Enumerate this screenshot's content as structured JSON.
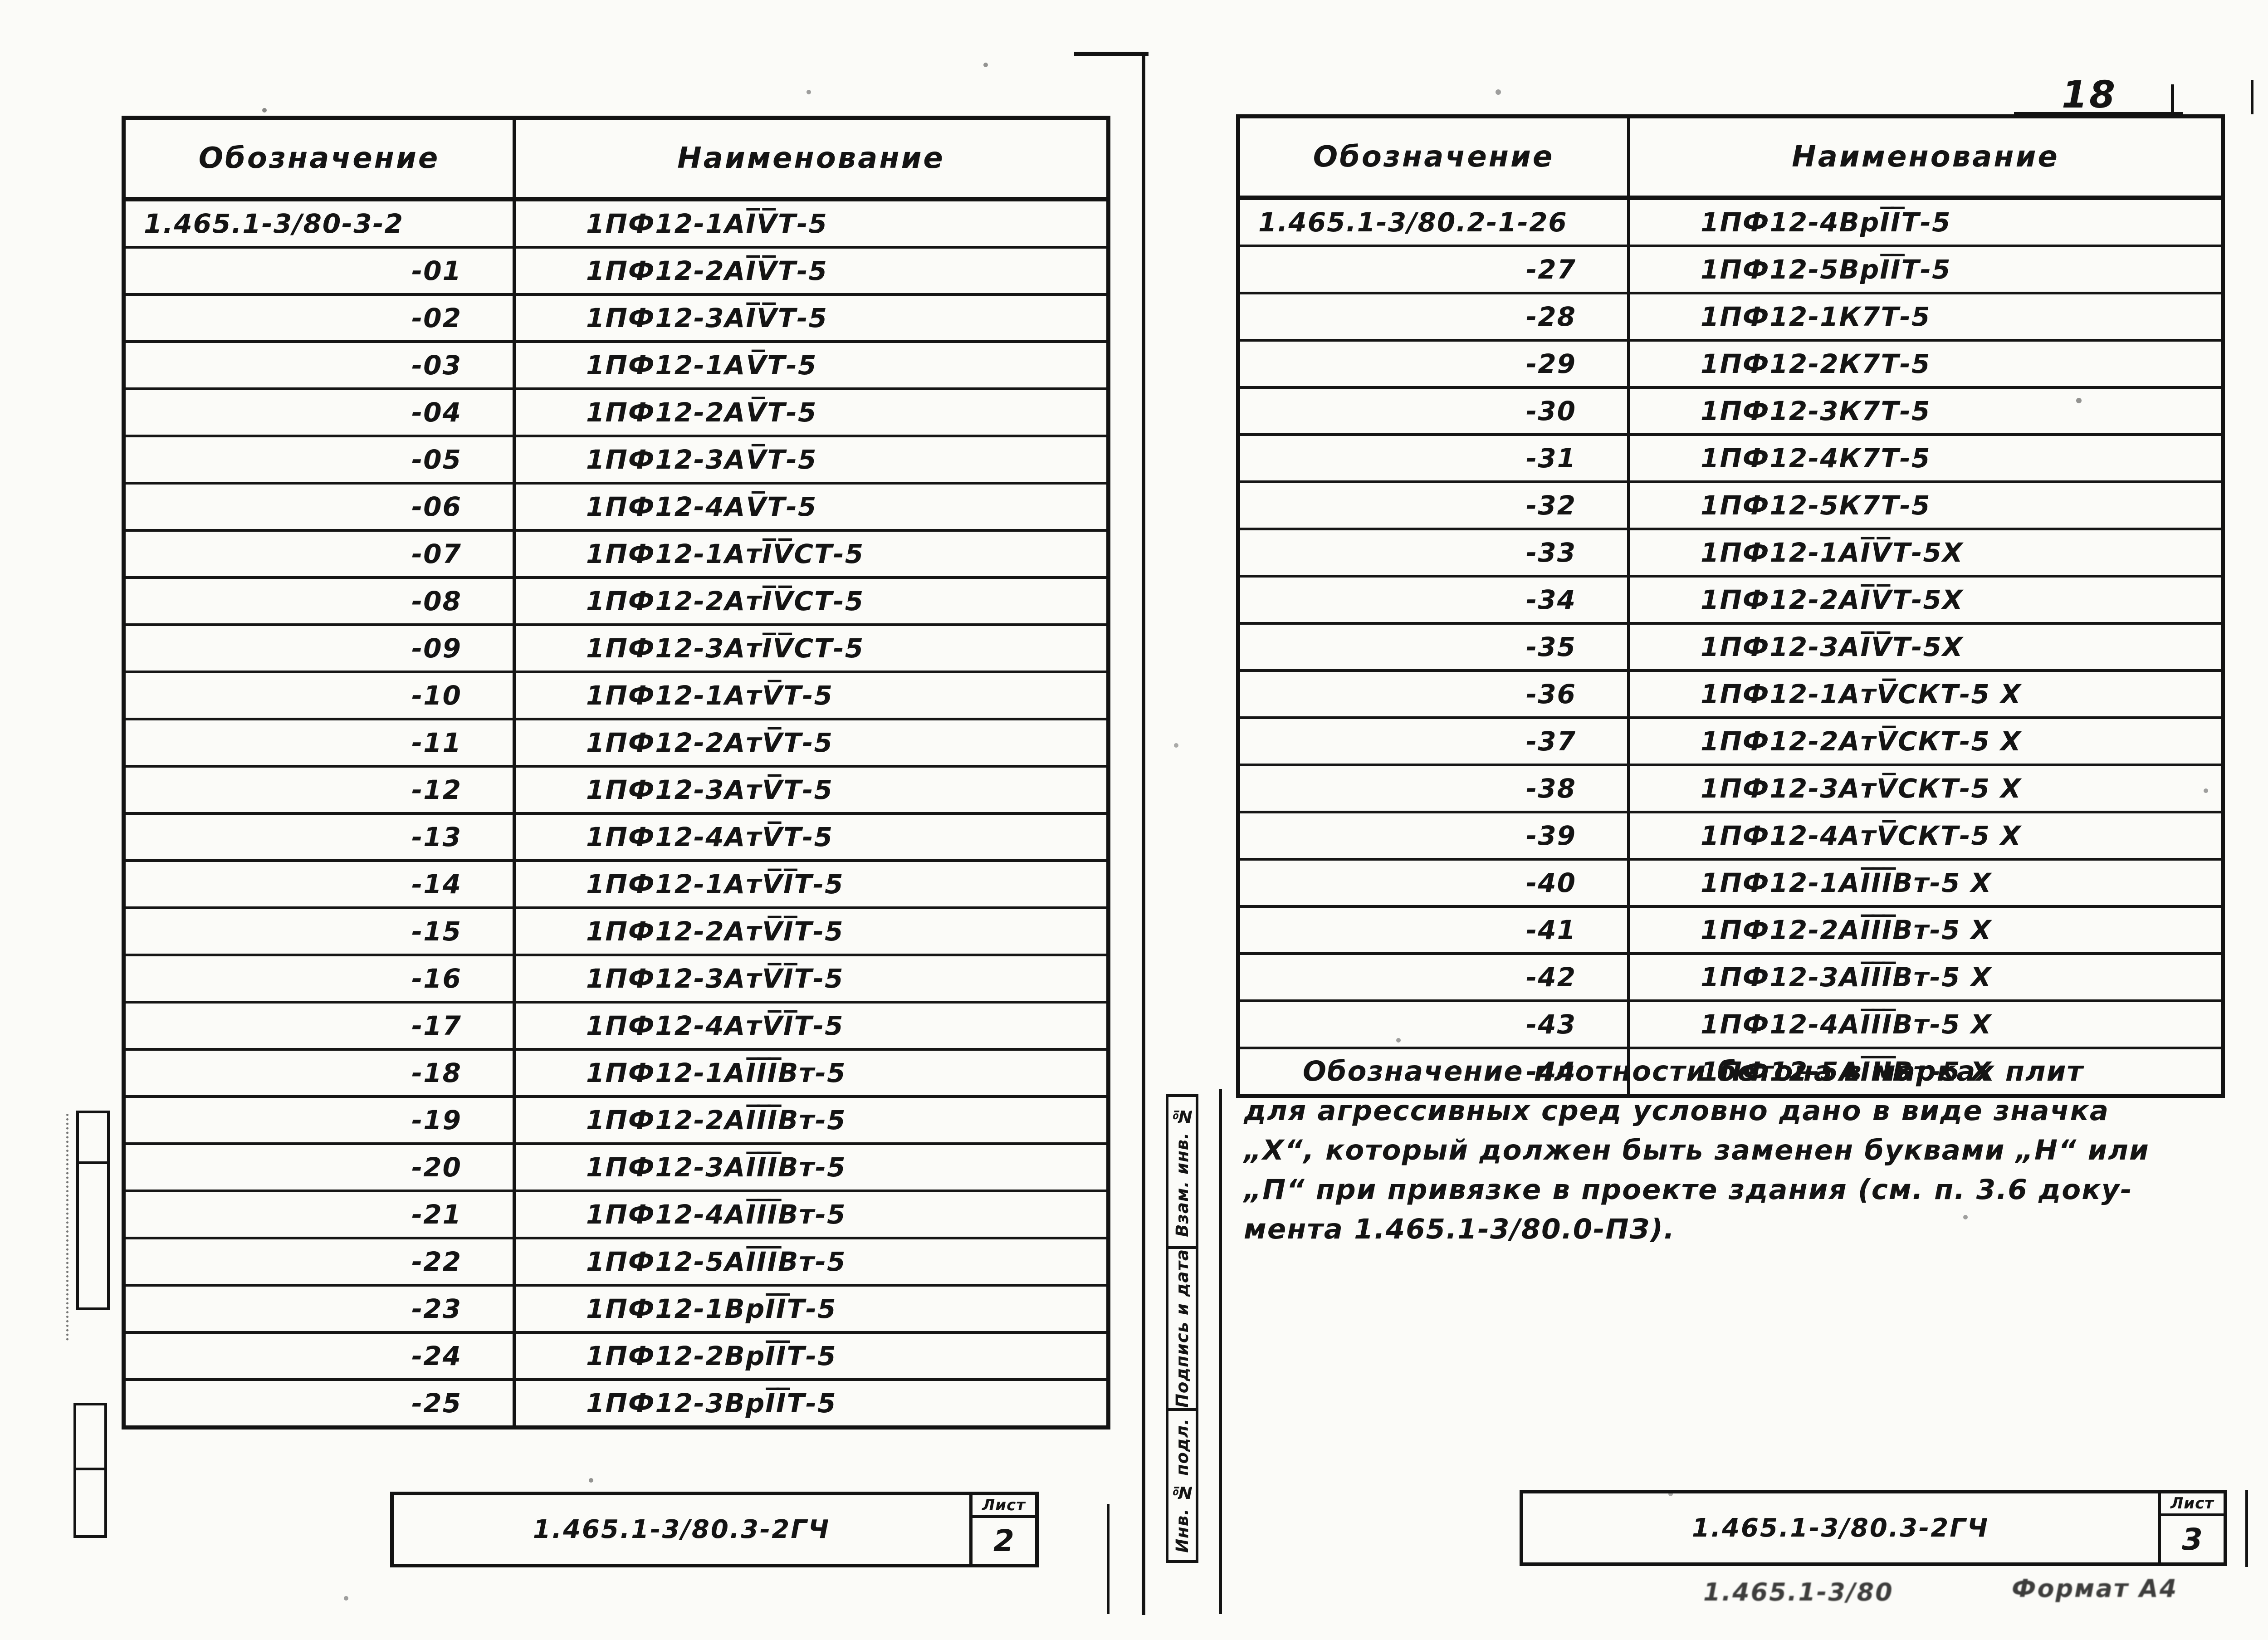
{
  "page": {
    "number": "18"
  },
  "tables": [
    {
      "id": "left",
      "headers": [
        "Обозначение",
        "Наименование"
      ],
      "rows": [
        [
          "1.465.1-3/80-3-2",
          "1ПФ12-1АI̅V̅Т-5"
        ],
        [
          "-01",
          "1ПФ12-2АI̅V̅Т-5"
        ],
        [
          "-02",
          "1ПФ12-3АI̅V̅Т-5"
        ],
        [
          "-03",
          "1ПФ12-1АV̅Т-5"
        ],
        [
          "-04",
          "1ПФ12-2АV̅Т-5"
        ],
        [
          "-05",
          "1ПФ12-3АV̅Т-5"
        ],
        [
          "-06",
          "1ПФ12-4АV̅Т-5"
        ],
        [
          "-07",
          "1ПФ12-1АтI̅V̅СТ-5"
        ],
        [
          "-08",
          "1ПФ12-2АтI̅V̅СТ-5"
        ],
        [
          "-09",
          "1ПФ12-3АтI̅V̅СТ-5"
        ],
        [
          "-10",
          "1ПФ12-1АтV̅Т-5"
        ],
        [
          "-11",
          "1ПФ12-2АтV̅Т-5"
        ],
        [
          "-12",
          "1ПФ12-3АтV̅Т-5"
        ],
        [
          "-13",
          "1ПФ12-4АтV̅Т-5"
        ],
        [
          "-14",
          "1ПФ12-1АтV̅I̅Т-5"
        ],
        [
          "-15",
          "1ПФ12-2АтV̅I̅Т-5"
        ],
        [
          "-16",
          "1ПФ12-3АтV̅I̅Т-5"
        ],
        [
          "-17",
          "1ПФ12-4АтV̅I̅Т-5"
        ],
        [
          "-18",
          "1ПФ12-1АI̅I̅I̅Вт-5"
        ],
        [
          "-19",
          "1ПФ12-2АI̅I̅I̅Вт-5"
        ],
        [
          "-20",
          "1ПФ12-3АI̅I̅I̅Вт-5"
        ],
        [
          "-21",
          "1ПФ12-4АI̅I̅I̅Вт-5"
        ],
        [
          "-22",
          "1ПФ12-5АI̅I̅I̅Вт-5"
        ],
        [
          "-23",
          "1ПФ12-1ВрI̅I̅Т-5"
        ],
        [
          "-24",
          "1ПФ12-2ВрI̅I̅Т-5"
        ],
        [
          "-25",
          "1ПФ12-3ВрI̅I̅Т-5"
        ]
      ]
    },
    {
      "id": "right",
      "headers": [
        "Обозначение",
        "Наименование"
      ],
      "rows": [
        [
          "1.465.1-3/80.2-1-26",
          "1ПФ12-4ВрI̅I̅Т-5"
        ],
        [
          "-27",
          "1ПФ12-5ВрI̅I̅Т-5"
        ],
        [
          "-28",
          "1ПФ12-1К7Т-5"
        ],
        [
          "-29",
          "1ПФ12-2К7Т-5"
        ],
        [
          "-30",
          "1ПФ12-3К7Т-5"
        ],
        [
          "-31",
          "1ПФ12-4К7Т-5"
        ],
        [
          "-32",
          "1ПФ12-5К7Т-5"
        ],
        [
          "-33",
          "1ПФ12-1АI̅V̅Т-5Х"
        ],
        [
          "-34",
          "1ПФ12-2АI̅V̅Т-5Х"
        ],
        [
          "-35",
          "1ПФ12-3АI̅V̅Т-5Х"
        ],
        [
          "-36",
          "1ПФ12-1АтV̅СКТ-5 Х"
        ],
        [
          "-37",
          "1ПФ12-2АтV̅СКТ-5 Х"
        ],
        [
          "-38",
          "1ПФ12-3АтV̅СКТ-5 Х"
        ],
        [
          "-39",
          "1ПФ12-4АтV̅СКТ-5 Х"
        ],
        [
          "-40",
          "1ПФ12-1АI̅I̅I̅Вт-5 Х"
        ],
        [
          "-41",
          "1ПФ12-2АI̅I̅I̅Вт-5 Х"
        ],
        [
          "-42",
          "1ПФ12-3АI̅I̅I̅Вт-5 Х"
        ],
        [
          "-43",
          "1ПФ12-4АI̅I̅I̅Вт-5 Х"
        ],
        [
          "-44",
          "1ПФ12-5АI̅I̅I̅Вт-5 Х"
        ]
      ]
    }
  ],
  "note": {
    "lines": [
      "Обозначение  плотности  бетона  в  марках  плит",
      "для  агрессивных  сред  условно  дано  в  виде  значка",
      "„Х“,  который  должен  быть  заменен  буквами  „Н“ или",
      "„П“  при  привязке  в  проекте  здания (см. п. 3.6 доку-",
      "мента 1.465.1-3/80.0-ПЗ)."
    ]
  },
  "stamps": [
    {
      "code": "1.465.1-3/80.3-2ГЧ",
      "sheet_label": "Лист",
      "sheet_number": "2"
    },
    {
      "code": "1.465.1-3/80.3-2ГЧ",
      "sheet_label": "Лист",
      "sheet_number": "3"
    }
  ],
  "side_strip": {
    "cells": [
      "Взам. инв. №",
      "Подпись и дата",
      "Инв. № подл."
    ]
  },
  "footer": {
    "code_fragment": "1.465.1-3/80",
    "format_label": "Формат А4"
  }
}
